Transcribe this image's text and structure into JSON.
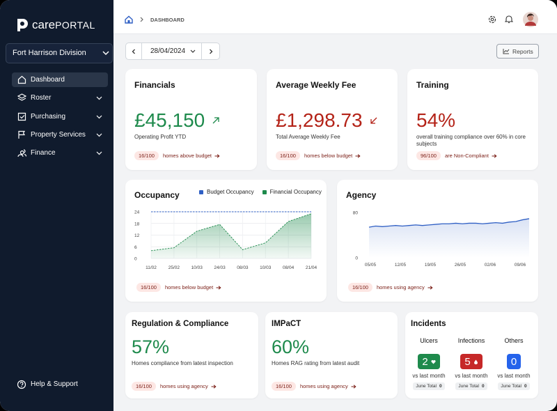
{
  "brand": {
    "prefix": "care",
    "suffix": "PORTAL"
  },
  "division": "Fort Harrison Division",
  "nav": [
    "Dashboard",
    "Roster",
    "Purchasing",
    "Property Services",
    "Finance"
  ],
  "help": "Help & Support",
  "breadcrumb": "DASHBOARD",
  "date": "28/04/2024",
  "reports": "Reports",
  "top_cards": [
    {
      "title": "Financials",
      "value": "£45,150",
      "caption": "Operating Profit YTD",
      "badge": "16/100",
      "link": "homes above budget",
      "color": "#1e8a4c"
    },
    {
      "title": "Average Weekly Fee",
      "value": "£1,298.73",
      "caption": "Total Average Weekly Fee",
      "badge": "16/100",
      "link": "homes below budget",
      "color": "#b42318"
    },
    {
      "title": "Training",
      "value": "54%",
      "caption": "overall training compliance over 60% in core subjects",
      "badge": "96/100",
      "link": "are Non-Compliant",
      "color": "#b42318"
    }
  ],
  "occupancy": {
    "type": "area",
    "title": "Occupancy",
    "categories": [
      "11/02",
      "25/02",
      "10/03",
      "24/03",
      "08/03",
      "10/03",
      "08/04",
      "21/04"
    ],
    "series": [
      {
        "name": "Budget Occupancy",
        "color": "#2f5fc4",
        "values": [
          24,
          24,
          24,
          24,
          24,
          24,
          24,
          24
        ]
      },
      {
        "name": "Financial Occupancy",
        "color": "#1e8a4c",
        "values": [
          4,
          5.5,
          14,
          17.5,
          4.5,
          8,
          19,
          23
        ]
      }
    ],
    "ylim": [
      0,
      24
    ],
    "yticks": [
      0,
      6,
      12,
      18,
      24
    ],
    "grid": true,
    "badge": "16/100",
    "link": "homes below budget"
  },
  "agency": {
    "type": "line",
    "title": "Agency",
    "xticks": [
      "05/05",
      "12/05",
      "19/05",
      "26/05",
      "02/06",
      "09/06"
    ],
    "values": [
      54,
      56,
      55,
      56,
      57,
      56,
      57,
      58,
      57,
      58,
      59,
      60,
      60,
      61,
      60,
      61,
      61,
      60,
      61,
      62,
      61,
      63,
      64,
      67,
      69
    ],
    "color": "#2f5fc4",
    "ylim": [
      0,
      80
    ],
    "yticks": [
      0,
      80
    ],
    "badge": "16/100",
    "link": "homes using agency"
  },
  "bottom_cards": [
    {
      "title": "Regulation & Compliance",
      "value": "57%",
      "caption": "Homes compliance from latest inspection",
      "badge": "16/100",
      "link": "homes using agency",
      "color": "#1e8a4c"
    },
    {
      "title": "IMPaCT",
      "value": "60%",
      "caption": "Homes RAG rating from latest audit",
      "badge": "16/100",
      "link": "homes using agency",
      "color": "#1e8a4c"
    }
  ],
  "incidents": {
    "title": "Incidents",
    "items": [
      {
        "label": "Ulcers",
        "value": 2,
        "color": "#1e8a4c",
        "trend": "vs last month",
        "total_label": "June Total",
        "total": 0
      },
      {
        "label": "Infections",
        "value": 5,
        "color": "#c62828",
        "trend": "vs last month",
        "total_label": "June Total",
        "total": 0
      },
      {
        "label": "Others",
        "value": 0,
        "color": "#2563eb",
        "trend": "vs last month",
        "total_label": "June Total",
        "total": 0
      }
    ]
  }
}
